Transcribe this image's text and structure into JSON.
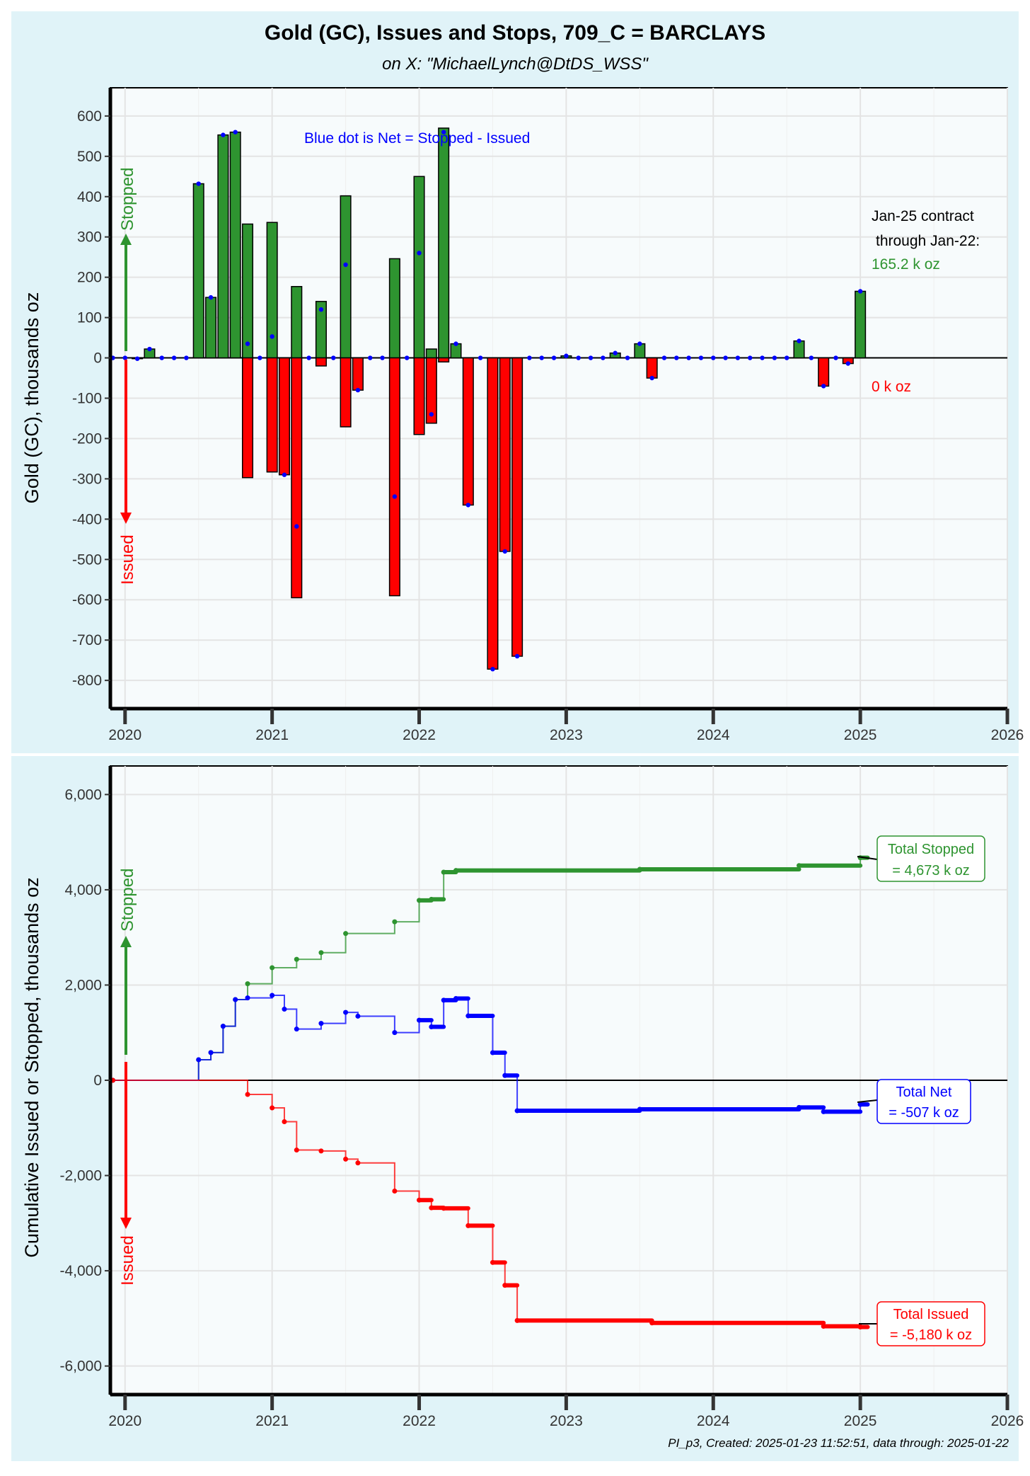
{
  "title": "Gold (GC), Issues and Stops, 709_C = BARCLAYS",
  "subtitle": "on X:   \"MichaelLynch@DtDS_WSS\"",
  "footer": "PI_p3, Created: 2025-01-23 11:52:51, data through: 2025-01-22",
  "colors": {
    "panel_bg": "#e0f3f8",
    "plot_bg": "#f7fbfc",
    "stopped": "#2e9430",
    "issued": "#ff0000",
    "net": "#0000ff",
    "gridline": "#e4e4e4"
  },
  "arrow_labels": {
    "stopped": "Stopped",
    "issued": "Issued"
  },
  "chart_data": [
    {
      "type": "bar",
      "ylabel": "Gold (GC), thousands oz",
      "xlabel": "",
      "ylim": [
        -870,
        670
      ],
      "xlim": [
        2019.9,
        2026
      ],
      "yticks": [
        -800,
        -700,
        -600,
        -500,
        -400,
        -300,
        -200,
        -100,
        0,
        100,
        200,
        300,
        400,
        500,
        600
      ],
      "ytick_labels": [
        "-800",
        "-700",
        "-600",
        "-500",
        "-400",
        "-300",
        "-200",
        "-100",
        "0",
        "100",
        "200",
        "300",
        "400",
        "500",
        "600"
      ],
      "xticks": [
        2020,
        2021,
        2022,
        2023,
        2024,
        2025,
        2026
      ],
      "xtick_labels": [
        "2020",
        "2021",
        "2022",
        "2023",
        "2024",
        "2025",
        "2026"
      ],
      "annotations": {
        "net_note": "Blue dot is Net = Stopped - Issued",
        "contract_line1": "Jan-25 contract",
        "contract_line2": "through Jan-22:",
        "contract_stopped": "165.2 k oz",
        "contract_issued": "0 k oz"
      },
      "months": [
        {
          "date": "2019-12",
          "stopped": 0,
          "issued": 0
        },
        {
          "date": "2020-01",
          "stopped": 0,
          "issued": 0
        },
        {
          "date": "2020-02",
          "stopped": 0,
          "issued": -2
        },
        {
          "date": "2020-03",
          "stopped": 22,
          "issued": 0
        },
        {
          "date": "2020-04",
          "stopped": 0,
          "issued": 0
        },
        {
          "date": "2020-05",
          "stopped": 0,
          "issued": 0
        },
        {
          "date": "2020-06",
          "stopped": 0,
          "issued": 0
        },
        {
          "date": "2020-07",
          "stopped": 432,
          "issued": 0
        },
        {
          "date": "2020-08",
          "stopped": 150,
          "issued": 0
        },
        {
          "date": "2020-09",
          "stopped": 553,
          "issued": 0
        },
        {
          "date": "2020-10",
          "stopped": 560,
          "issued": 0
        },
        {
          "date": "2020-11",
          "stopped": 332,
          "issued": -297
        },
        {
          "date": "2020-12",
          "stopped": 0,
          "issued": 0
        },
        {
          "date": "2021-01",
          "stopped": 336,
          "issued": -283
        },
        {
          "date": "2021-02",
          "stopped": 0,
          "issued": -290
        },
        {
          "date": "2021-03",
          "stopped": 177,
          "issued": -595
        },
        {
          "date": "2021-04",
          "stopped": 0,
          "issued": 0
        },
        {
          "date": "2021-05",
          "stopped": 140,
          "issued": -20
        },
        {
          "date": "2021-06",
          "stopped": 0,
          "issued": 0
        },
        {
          "date": "2021-07",
          "stopped": 402,
          "issued": -171
        },
        {
          "date": "2021-08",
          "stopped": 0,
          "issued": -80
        },
        {
          "date": "2021-09",
          "stopped": 0,
          "issued": 0
        },
        {
          "date": "2021-10",
          "stopped": 0,
          "issued": 0
        },
        {
          "date": "2021-11",
          "stopped": 246,
          "issued": -590
        },
        {
          "date": "2021-12",
          "stopped": 0,
          "issued": 0
        },
        {
          "date": "2022-01",
          "stopped": 450,
          "issued": -190
        },
        {
          "date": "2022-02",
          "stopped": 22,
          "issued": -162
        },
        {
          "date": "2022-03",
          "stopped": 570,
          "issued": -10
        },
        {
          "date": "2022-04",
          "stopped": 35,
          "issued": 0
        },
        {
          "date": "2022-05",
          "stopped": 0,
          "issued": -365
        },
        {
          "date": "2022-06",
          "stopped": 0,
          "issued": 0
        },
        {
          "date": "2022-07",
          "stopped": 0,
          "issued": -772
        },
        {
          "date": "2022-08",
          "stopped": 0,
          "issued": -480
        },
        {
          "date": "2022-09",
          "stopped": 0,
          "issued": -740
        },
        {
          "date": "2022-10",
          "stopped": 0,
          "issued": 0
        },
        {
          "date": "2022-11",
          "stopped": 0,
          "issued": 0
        },
        {
          "date": "2022-12",
          "stopped": 0,
          "issued": 0
        },
        {
          "date": "2023-01",
          "stopped": 5,
          "issued": 0
        },
        {
          "date": "2023-02",
          "stopped": 0,
          "issued": 0
        },
        {
          "date": "2023-03",
          "stopped": 0,
          "issued": 0
        },
        {
          "date": "2023-04",
          "stopped": 0,
          "issued": 0
        },
        {
          "date": "2023-05",
          "stopped": 12,
          "issued": 0
        },
        {
          "date": "2023-06",
          "stopped": 0,
          "issued": 0
        },
        {
          "date": "2023-07",
          "stopped": 35,
          "issued": 0
        },
        {
          "date": "2023-08",
          "stopped": 0,
          "issued": -50
        },
        {
          "date": "2023-09",
          "stopped": 0,
          "issued": 0
        },
        {
          "date": "2023-10",
          "stopped": 0,
          "issued": 0
        },
        {
          "date": "2023-11",
          "stopped": 0,
          "issued": 0
        },
        {
          "date": "2023-12",
          "stopped": 0,
          "issued": 0
        },
        {
          "date": "2024-01",
          "stopped": 0,
          "issued": 0
        },
        {
          "date": "2024-02",
          "stopped": 0,
          "issued": 0
        },
        {
          "date": "2024-03",
          "stopped": 0,
          "issued": 0
        },
        {
          "date": "2024-04",
          "stopped": 0,
          "issued": 0
        },
        {
          "date": "2024-05",
          "stopped": 0,
          "issued": 0
        },
        {
          "date": "2024-06",
          "stopped": 0,
          "issued": 0
        },
        {
          "date": "2024-07",
          "stopped": 0,
          "issued": 0
        },
        {
          "date": "2024-08",
          "stopped": 42,
          "issued": 0
        },
        {
          "date": "2024-09",
          "stopped": 0,
          "issued": 0
        },
        {
          "date": "2024-10",
          "stopped": 0,
          "issued": -70
        },
        {
          "date": "2024-11",
          "stopped": 0,
          "issued": 0
        },
        {
          "date": "2024-12",
          "stopped": 0,
          "issued": -14
        },
        {
          "date": "2025-01",
          "stopped": 165.2,
          "issued": 0
        }
      ]
    },
    {
      "type": "line",
      "ylabel": "Cumulative Issued or Stopped, thousands oz",
      "xlabel": "",
      "ylim": [
        -6600,
        6600
      ],
      "xlim": [
        2019.9,
        2026
      ],
      "yticks": [
        -6000,
        -4000,
        -2000,
        0,
        2000,
        4000,
        6000
      ],
      "ytick_labels": [
        "-6,000",
        "-4,000",
        "-2,000",
        "0",
        "2,000",
        "4,000",
        "6,000"
      ],
      "xticks": [
        2020,
        2021,
        2022,
        2023,
        2024,
        2025,
        2026
      ],
      "xtick_labels": [
        "2020",
        "2021",
        "2022",
        "2023",
        "2024",
        "2025",
        "2026"
      ],
      "labels": {
        "stopped_line1": "Total Stopped",
        "stopped_line2": "= 4,673 k oz",
        "net_line1": "Total Net",
        "net_line2": "= -507 k oz",
        "issued_line1": "Total Issued",
        "issued_line2": "= -5,180 k oz"
      },
      "series": [
        {
          "name": "Total Stopped",
          "x": [
            "2019-12",
            "2020-07",
            "2020-08",
            "2020-09",
            "2020-10",
            "2020-11",
            "2021-01",
            "2021-03",
            "2021-05",
            "2021-07",
            "2021-11",
            "2022-01",
            "2022-02",
            "2022-03",
            "2022-04",
            "2023-07",
            "2024-08",
            "2025-01"
          ],
          "y": [
            0,
            432,
            582,
            1135,
            1695,
            2027,
            2363,
            2540,
            2680,
            3082,
            3328,
            3778,
            3800,
            4370,
            4405,
            4430,
            4508,
            4673
          ]
        },
        {
          "name": "Total Net",
          "x": [
            "2019-12",
            "2020-07",
            "2020-08",
            "2020-09",
            "2020-10",
            "2020-11",
            "2021-01",
            "2021-02",
            "2021-03",
            "2021-05",
            "2021-07",
            "2021-08",
            "2021-11",
            "2022-01",
            "2022-02",
            "2022-03",
            "2022-04",
            "2022-05",
            "2022-07",
            "2022-08",
            "2022-09",
            "2023-07",
            "2024-08",
            "2024-10",
            "2025-01"
          ],
          "y": [
            0,
            432,
            582,
            1135,
            1695,
            1730,
            1783,
            1493,
            1075,
            1195,
            1426,
            1346,
            1002,
            1262,
            1122,
            1682,
            1717,
            1352,
            580,
            100,
            -640,
            -610,
            -570,
            -660,
            -507
          ]
        },
        {
          "name": "Total Issued",
          "x": [
            "2019-12",
            "2020-11",
            "2021-01",
            "2021-02",
            "2021-03",
            "2021-05",
            "2021-07",
            "2021-08",
            "2021-11",
            "2022-01",
            "2022-02",
            "2022-03",
            "2022-05",
            "2022-07",
            "2022-08",
            "2022-09",
            "2023-08",
            "2024-10",
            "2025-01"
          ],
          "y": [
            0,
            -297,
            -580,
            -870,
            -1465,
            -1485,
            -1656,
            -1736,
            -2326,
            -2516,
            -2678,
            -2688,
            -3053,
            -3825,
            -4305,
            -5045,
            -5095,
            -5165,
            -5180
          ]
        }
      ]
    }
  ]
}
